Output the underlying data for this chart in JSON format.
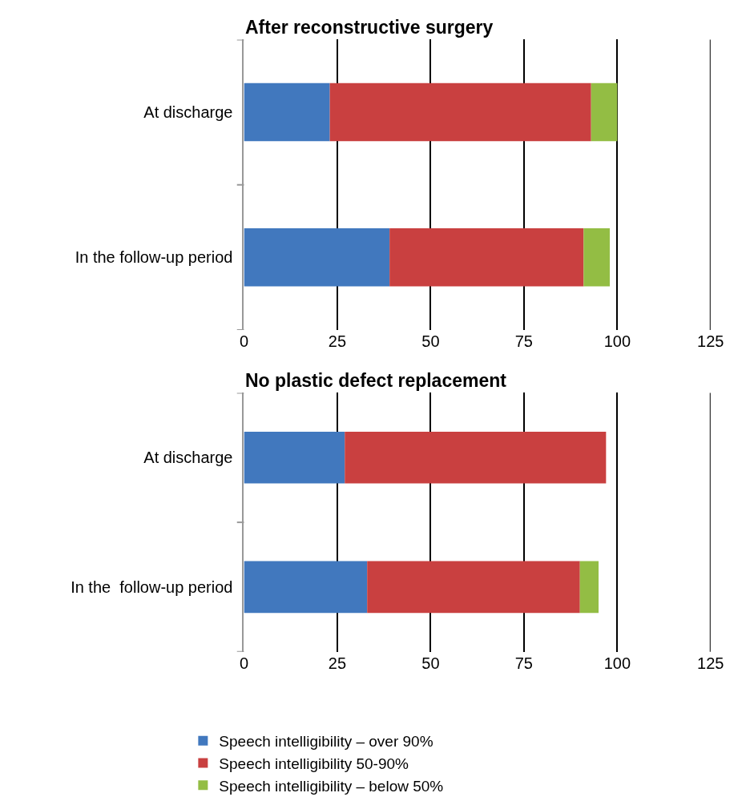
{
  "chart_data": [
    {
      "type": "bar",
      "orientation": "horizontal",
      "stacked": true,
      "title": "After reconstructive surgery",
      "categories": [
        "At discharge",
        "In the follow-up period"
      ],
      "series": [
        {
          "name": "Speech intelligibility – over 90%",
          "color": "#4178be",
          "values": [
            23,
            39
          ]
        },
        {
          "name": "Speech intelligibility 50-90%",
          "color": "#c94040",
          "values": [
            70,
            52
          ]
        },
        {
          "name": "Speech intelligibility – below 50%",
          "color": "#93bd44",
          "values": [
            7,
            7
          ]
        }
      ],
      "xlim": [
        0,
        125
      ],
      "xticks": [
        0,
        25,
        50,
        75,
        100,
        125
      ],
      "grid": "x",
      "legend": "bottom"
    },
    {
      "type": "bar",
      "orientation": "horizontal",
      "stacked": true,
      "title": "No plastic defect replacement",
      "categories": [
        "At discharge",
        "In the  follow-up period"
      ],
      "series": [
        {
          "name": "Speech intelligibility – over 90%",
          "color": "#4178be",
          "values": [
            27,
            33
          ]
        },
        {
          "name": "Speech intelligibility 50-90%",
          "color": "#c94040",
          "values": [
            70,
            57
          ]
        },
        {
          "name": "Speech intelligibility – below 50%",
          "color": "#93bd44",
          "values": [
            0,
            5
          ]
        }
      ],
      "xlim": [
        0,
        125
      ],
      "xticks": [
        0,
        25,
        50,
        75,
        100,
        125
      ],
      "grid": "x",
      "legend": "bottom"
    }
  ]
}
